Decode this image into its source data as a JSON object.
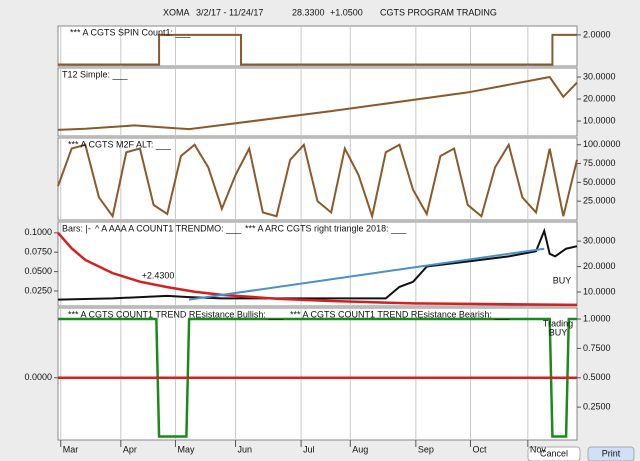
{
  "header": {
    "symbol": "XOMA",
    "range": "3/2/17 - 11/24/17",
    "price": "28.3300",
    "change": "+1.0500",
    "study": "CGTS PROGRAM TRADING"
  },
  "buttons": [
    "Cancel",
    "Print"
  ],
  "chart_data": [
    {
      "type": "line",
      "xlim": [
        0,
        190
      ],
      "ylim": [
        -0.1,
        2.6
      ],
      "yticks": [
        {
          "value": 2,
          "label": "2.0000"
        }
      ],
      "series": [
        {
          "name": "*** A CGTS SPIN Count1: ___",
          "color": "#8b5a2b",
          "x": [
            0,
            37,
            37,
            67,
            67,
            181,
            181,
            190
          ],
          "values": [
            0,
            0,
            2,
            2,
            0,
            0,
            2,
            2
          ]
        }
      ]
    },
    {
      "type": "line",
      "xlim": [
        0,
        190
      ],
      "ylim": [
        3.2,
        34.1
      ],
      "yticks": [
        {
          "value": 30,
          "label": "30.0000"
        },
        {
          "value": 20,
          "label": "20.0000"
        },
        {
          "value": 10,
          "label": "10.0000"
        }
      ],
      "series": [
        {
          "name": "T12 Simple: ___",
          "color": "#8b5a2b",
          "x": [
            0,
            10,
            28,
            48,
            100,
            150,
            180,
            185,
            190
          ],
          "values": [
            6,
            6.5,
            8,
            6.3,
            14.5,
            23,
            30,
            21,
            27.5
          ]
        }
      ]
    },
    {
      "type": "line",
      "xlim": [
        0,
        190
      ],
      "ylim": [
        0,
        109
      ],
      "yticks": [
        {
          "value": 100,
          "label": "100.0000"
        },
        {
          "value": 75,
          "label": "75.0000"
        },
        {
          "value": 50,
          "label": "50.0000"
        },
        {
          "value": 25,
          "label": "25.0000"
        }
      ],
      "series": [
        {
          "name": "*** A CGTS M2F ALT: ___",
          "color": "#8b5a2b",
          "x": [
            0,
            5,
            10,
            15,
            20,
            25,
            30,
            35,
            40,
            45,
            50,
            55,
            60,
            65,
            70,
            75,
            80,
            85,
            90,
            95,
            100,
            105,
            110,
            115,
            120,
            125,
            130,
            135,
            140,
            145,
            150,
            155,
            160,
            165,
            170,
            175,
            180,
            185,
            190
          ],
          "values": [
            45,
            95,
            100,
            30,
            5,
            90,
            95,
            20,
            8,
            85,
            100,
            70,
            15,
            60,
            95,
            10,
            5,
            80,
            100,
            25,
            10,
            95,
            60,
            5,
            90,
            100,
            40,
            8,
            85,
            95,
            20,
            5,
            70,
            100,
            30,
            10,
            95,
            5,
            80
          ]
        }
      ]
    },
    {
      "type": "line",
      "xlim": [
        0,
        190
      ],
      "ylim": [
        4.5,
        37.5
      ],
      "yticks": [
        {
          "value": 30,
          "label": "30.0000"
        },
        {
          "value": 20,
          "label": "20.0000"
        },
        {
          "value": 10,
          "label": "10.0000"
        }
      ],
      "y2lim": [
        0.0056,
        0.114
      ],
      "y2ticks": [
        {
          "value": 0.1,
          "label": "0.1000"
        },
        {
          "value": 0.075,
          "label": "0.0750"
        },
        {
          "value": 0.05,
          "label": "0.0500"
        },
        {
          "value": 0.025,
          "label": "0.0250"
        }
      ],
      "annotations": [
        "+2.4300",
        "BUY"
      ],
      "series": [
        {
          "name": "Bars: |-",
          "color": "#111111",
          "x": [
            0,
            20,
            40,
            48,
            60,
            90,
            120,
            125,
            130,
            135,
            150,
            165,
            175,
            178,
            180,
            182,
            186,
            190
          ],
          "values": [
            7,
            7.5,
            8.5,
            8,
            7.5,
            7.5,
            7.5,
            12,
            14,
            20,
            22,
            24,
            26,
            34,
            25,
            24,
            27,
            28
          ]
        },
        {
          "name": "^ A AAA A COUNT1 TRENDMO: ___",
          "color": "#d42020",
          "axis": "y2",
          "x": [
            0,
            5,
            10,
            20,
            30,
            40,
            50,
            60,
            80,
            100,
            130,
            160,
            190
          ],
          "values": [
            0.1,
            0.08,
            0.065,
            0.048,
            0.037,
            0.03,
            0.024,
            0.02,
            0.015,
            0.012,
            0.009,
            0.008,
            0.007
          ]
        },
        {
          "name": "*** A ARC CGTS right triangle 2018: ___",
          "color": "#4a90c8",
          "x": [
            48,
            178
          ],
          "values": [
            7,
            27
          ]
        }
      ]
    },
    {
      "type": "line",
      "xlim": [
        0,
        190
      ],
      "ylim": [
        -0.03,
        1.094
      ],
      "yticks": [
        {
          "value": 1,
          "label": "1.0000"
        },
        {
          "value": 0.75,
          "label": "0.7500"
        },
        {
          "value": 0.5,
          "label": "0.5000"
        },
        {
          "value": 0.25,
          "label": "0.2500"
        }
      ],
      "y2lim": [
        -0.53,
        0.594
      ],
      "y2ticks": [
        {
          "value": 0,
          "label": "0.0000"
        }
      ],
      "annotations": [
        "Trading",
        "BUY"
      ],
      "xticks": [
        {
          "value": 1,
          "label": "Mar"
        },
        {
          "value": 23,
          "label": "Apr"
        },
        {
          "value": 43,
          "label": "May"
        },
        {
          "value": 65,
          "label": "Jun"
        },
        {
          "value": 89,
          "label": "Jul"
        },
        {
          "value": 107,
          "label": "Aug"
        },
        {
          "value": 131,
          "label": "Sep"
        },
        {
          "value": 151,
          "label": "Oct"
        },
        {
          "value": 172,
          "label": "Nov"
        }
      ],
      "series": [
        {
          "name": "*** A CGTS COUNT1 TREND REsistance Bullish: ___",
          "color": "#1a8a1a",
          "x": [
            0,
            36,
            37,
            47,
            48,
            180,
            181,
            186,
            187,
            190
          ],
          "values": [
            1,
            1,
            0,
            0,
            1,
            1,
            0,
            0,
            1,
            1
          ]
        },
        {
          "name": "*** A CGTS COUNT1 TREND REsistance Bearish: ___",
          "color": "#d42020",
          "axis": "y2",
          "x": [
            0,
            190
          ],
          "values": [
            0,
            0
          ]
        }
      ]
    }
  ]
}
